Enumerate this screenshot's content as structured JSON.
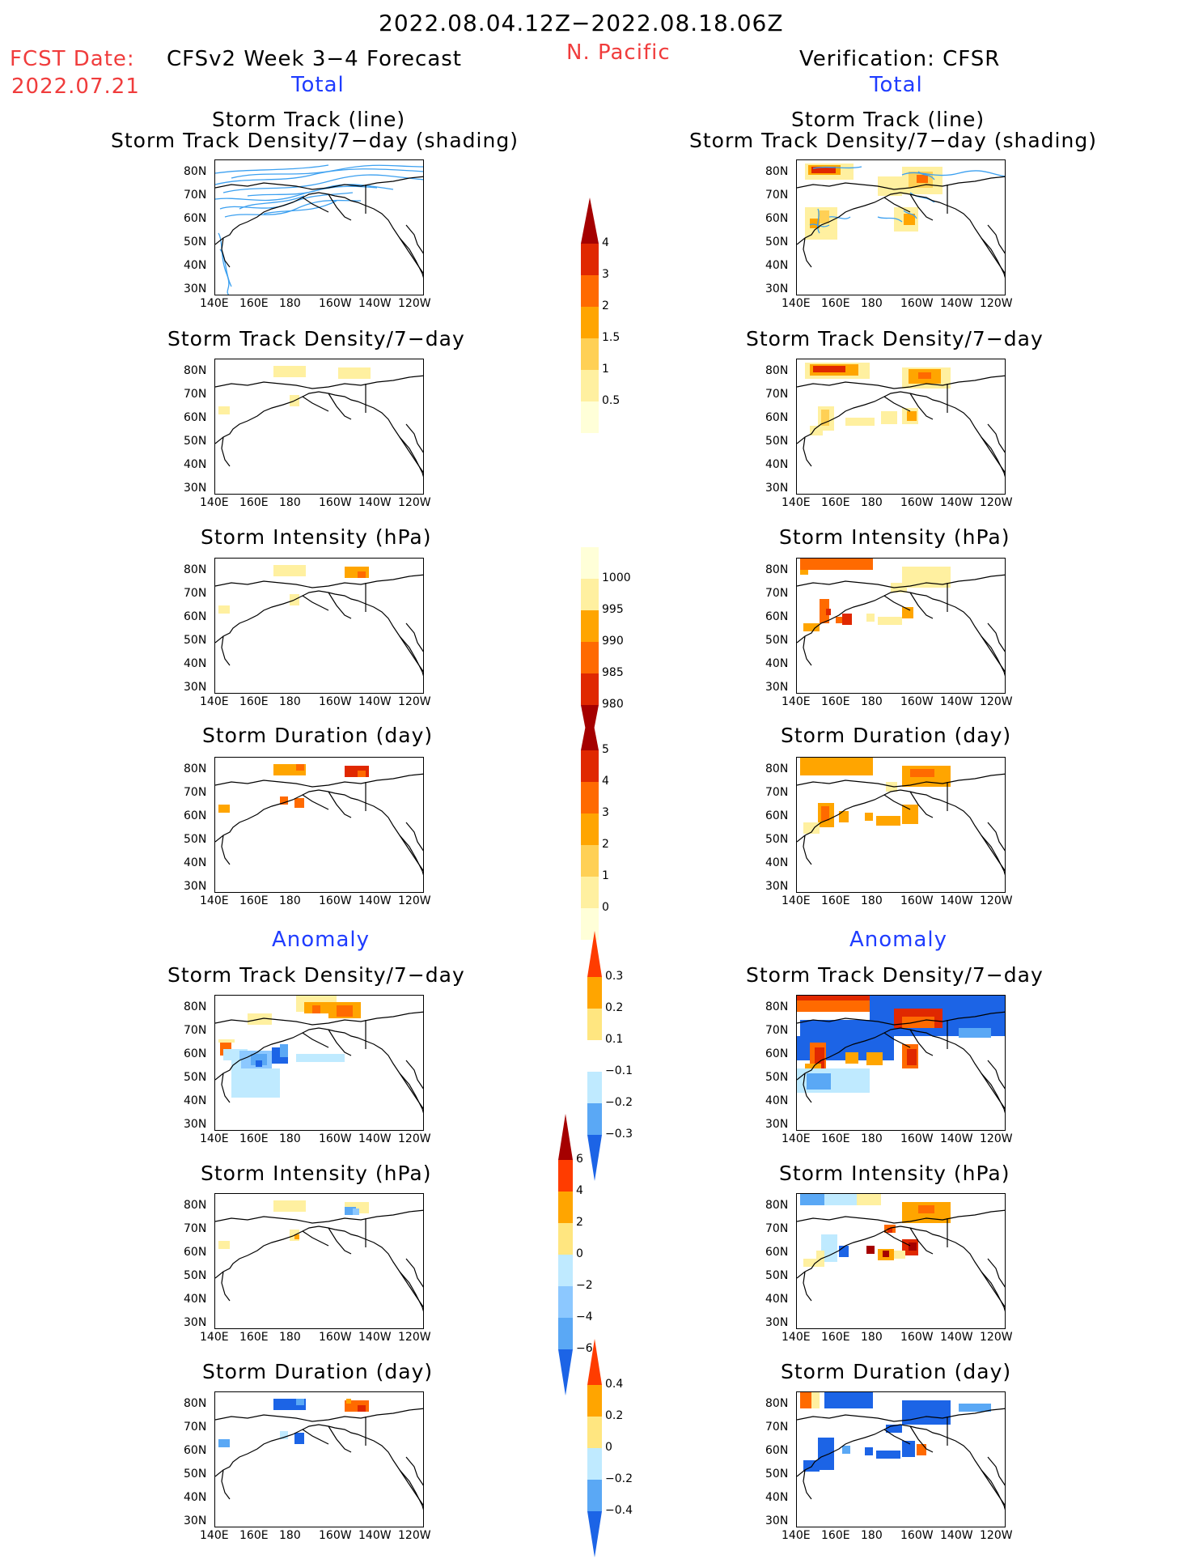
{
  "header": {
    "period": "2022.08.04.12Z−2022.08.18.06Z",
    "fcst_label": "FCST Date:",
    "fcst_date": "2022.07.21",
    "forecast_title": "CFSv2 Week 3−4 Forecast",
    "region": "N. Pacific",
    "verification_title": "Verification: CFSR"
  },
  "sections": {
    "total": "Total",
    "anomaly": "Anomaly"
  },
  "panel_titles": {
    "track_line": "Storm Track (line)",
    "track_shading": "Storm Track Density/7−day (shading)",
    "density": "Storm Track Density/7−day",
    "intensity": "Storm Intensity (hPa)",
    "duration": "Storm Duration (day)"
  },
  "axes": {
    "lat_ticks": [
      "80N",
      "70N",
      "60N",
      "50N",
      "40N",
      "30N"
    ],
    "lon_ticks": [
      "140E",
      "160E",
      "180",
      "160W",
      "140W",
      "120W"
    ]
  },
  "colorbars": {
    "density_total": {
      "labels": [
        "4",
        "3",
        "2",
        "1.5",
        "1",
        "0.5"
      ],
      "colors": [
        "#a50000",
        "#e02800",
        "#ff6a00",
        "#ffa500",
        "#ffd055",
        "#fff0a0",
        "#ffffd8"
      ]
    },
    "intensity_total": {
      "labels": [
        "1000",
        "995",
        "990",
        "985",
        "980"
      ],
      "colors": [
        "#ffffd8",
        "#fff0a0",
        "#ffa500",
        "#ff6a00",
        "#e02800",
        "#a50000"
      ]
    },
    "duration_total": {
      "labels": [
        "5",
        "4",
        "3",
        "2",
        "1",
        "0"
      ],
      "colors": [
        "#a50000",
        "#e02800",
        "#ff6a00",
        "#ffa500",
        "#ffd055",
        "#fff0a0",
        "#ffffd8"
      ]
    },
    "density_anom": {
      "labels": [
        "0.3",
        "0.2",
        "0.1",
        "−0.1",
        "−0.2",
        "−0.3"
      ],
      "colors": [
        "#ff3c00",
        "#ffa500",
        "#ffe680",
        "#ffffff",
        "#bfeaff",
        "#5aa8f5",
        "#1c64e6"
      ]
    },
    "intensity_anom": {
      "labels": [
        "6",
        "4",
        "2",
        "0",
        "−2",
        "−4",
        "−6"
      ],
      "colors": [
        "#a50000",
        "#ff3c00",
        "#ffa500",
        "#ffe680",
        "#bfeaff",
        "#8cc8ff",
        "#5aa8f5",
        "#1c64e6"
      ]
    },
    "duration_anom": {
      "labels": [
        "0.4",
        "0.2",
        "0",
        "−0.2",
        "−0.4"
      ],
      "colors": [
        "#ff3c00",
        "#ffa500",
        "#ffe680",
        "#bfeaff",
        "#5aa8f5",
        "#1c64e6"
      ]
    }
  },
  "colors": {
    "title_red": "#f03c3c",
    "section_blue": "#1f3cff",
    "track_line": "#3ca0f0"
  }
}
